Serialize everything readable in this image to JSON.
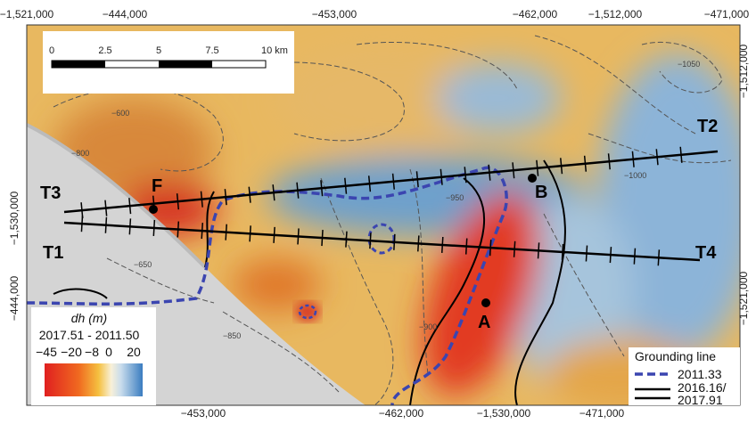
{
  "axes": {
    "top": [
      "−1,521,000",
      "−444,000",
      "−453,000",
      "−462,000",
      "−1,512,000",
      "−471,000"
    ],
    "bottom": [
      "−453,000",
      "−462,000",
      "−1,530,000",
      "−471,000"
    ],
    "left": [
      "−1,530,000",
      "−444,000"
    ],
    "right": [
      "−1,512,000",
      "−1,521,000"
    ]
  },
  "scale_bar": {
    "labels": [
      "0",
      "2.5",
      "5",
      "7.5",
      "10 km"
    ]
  },
  "transects": [
    "T1",
    "T2",
    "T3",
    "T4"
  ],
  "points": [
    "F",
    "B",
    "A"
  ],
  "contour_labels": [
    "−600",
    "−800",
    "−650",
    "−900",
    "−850",
    "−1000",
    "−1050",
    "−950"
  ],
  "legend": {
    "title": "dh (m)",
    "period": "2017.51 - 2011.50",
    "ticks": [
      "−45",
      "−20",
      "−8",
      "0",
      "20"
    ]
  },
  "grounding_legend": {
    "title": "Grounding line",
    "entries": [
      "2011.33",
      "2016.16/",
      "2017.91"
    ]
  }
}
